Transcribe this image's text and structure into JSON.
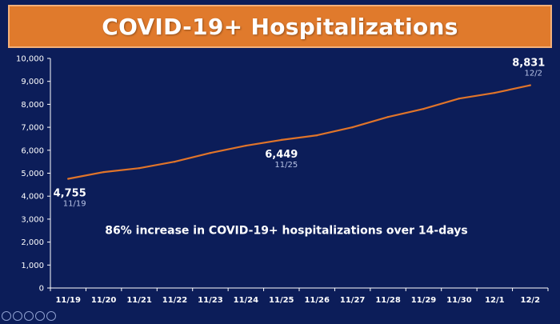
{
  "title": "COVID-19+ Hospitalizations",
  "colors": {
    "background": "#0c1d59",
    "banner": "#e07a2c",
    "line": "#e0742a",
    "axis": "#ffffff"
  },
  "chart_data": {
    "type": "line",
    "title": "COVID-19+ Hospitalizations",
    "xlabel": "",
    "ylabel": "",
    "ylim": [
      0,
      10000
    ],
    "yticks": [
      "0",
      "1,000",
      "2,000",
      "3,000",
      "4,000",
      "5,000",
      "6,000",
      "7,000",
      "8,000",
      "9,000",
      "10,000"
    ],
    "yticks_values": [
      0,
      1000,
      2000,
      3000,
      4000,
      5000,
      6000,
      7000,
      8000,
      9000,
      10000
    ],
    "categories": [
      "11/19",
      "11/20",
      "11/21",
      "11/22",
      "11/23",
      "11/24",
      "11/25",
      "11/26",
      "11/27",
      "11/28",
      "11/29",
      "11/30",
      "12/1",
      "12/2"
    ],
    "series": [
      {
        "values": [
          4755,
          5050,
          5220,
          5500,
          5880,
          6200,
          6449,
          6650,
          7000,
          7450,
          7800,
          8250,
          8500,
          8831
        ]
      }
    ],
    "grid": false,
    "data_labels": [
      {
        "index": 0,
        "value": "4,755",
        "date": "11/19"
      },
      {
        "index": 6,
        "value": "6,449",
        "date": "11/25"
      },
      {
        "index": 13,
        "value": "8,831",
        "date": "12/2"
      }
    ],
    "annotation": "86% increase in COVID-19+ hospitalizations over 14-days"
  }
}
